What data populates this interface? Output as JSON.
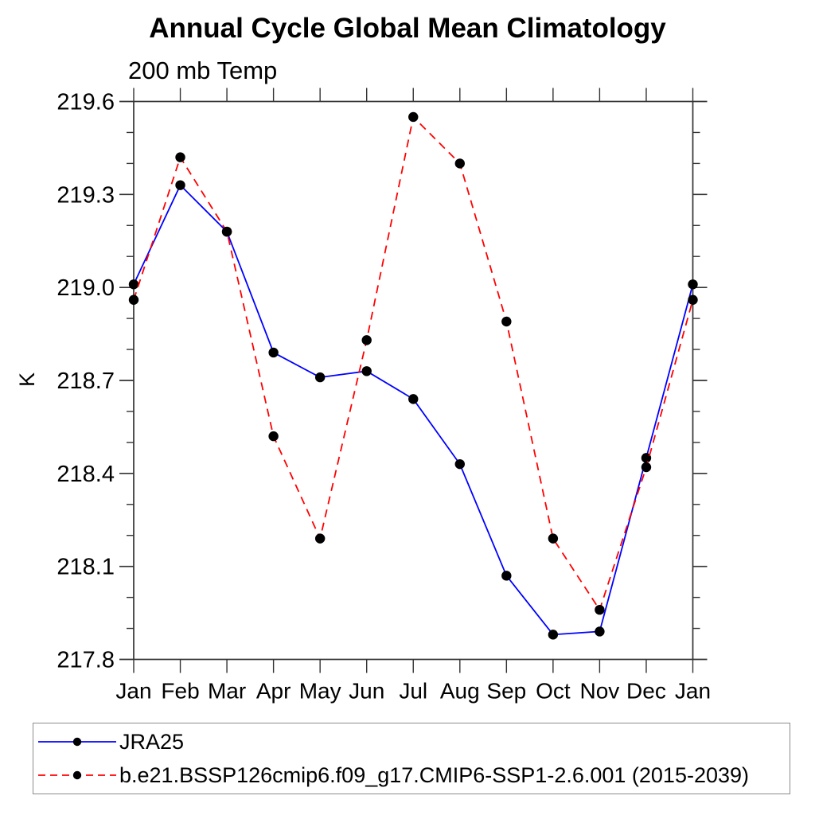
{
  "header": {
    "title": "Annual Cycle Global Mean Climatology",
    "subtitle": "200 mb Temp"
  },
  "chart_data": {
    "type": "line",
    "title": "Annual Cycle Global Mean Climatology",
    "subtitle": "200 mb Temp",
    "xlabel": "",
    "ylabel": "K",
    "categories": [
      "Jan",
      "Feb",
      "Mar",
      "Apr",
      "May",
      "Jun",
      "Jul",
      "Aug",
      "Sep",
      "Oct",
      "Nov",
      "Dec",
      "Jan"
    ],
    "ylim": [
      217.8,
      219.6
    ],
    "y_major_tick_labels": [
      "217.8",
      "218.1",
      "218.4",
      "218.7",
      "219.0",
      "219.3",
      "219.6"
    ],
    "y_major_tick_values": [
      217.8,
      218.1,
      218.4,
      218.7,
      219.0,
      219.3,
      219.6
    ],
    "y_minor_tick_step": 0.1,
    "grid": false,
    "legend_position": "bottom-left-box",
    "axis_color": "#333333",
    "text_color": "#000000",
    "series": [
      {
        "name": "JRA25",
        "color": "#0000ff",
        "line_style": "solid",
        "marker": "filled-circle",
        "marker_color": "#000000",
        "values": [
          219.01,
          219.33,
          219.18,
          218.79,
          218.71,
          218.73,
          218.64,
          218.43,
          218.07,
          217.88,
          217.89,
          218.45,
          219.01
        ]
      },
      {
        "name": "b.e21.BSSP126cmip6.f09_g17.CMIP6-SSP1-2.6.001 (2015-2039)",
        "color": "#ff0000",
        "line_style": "dashed",
        "marker": "filled-circle",
        "marker_color": "#000000",
        "values": [
          218.96,
          219.42,
          219.18,
          218.52,
          218.19,
          218.83,
          219.55,
          219.4,
          218.89,
          218.19,
          217.96,
          218.42,
          218.96
        ]
      }
    ]
  }
}
